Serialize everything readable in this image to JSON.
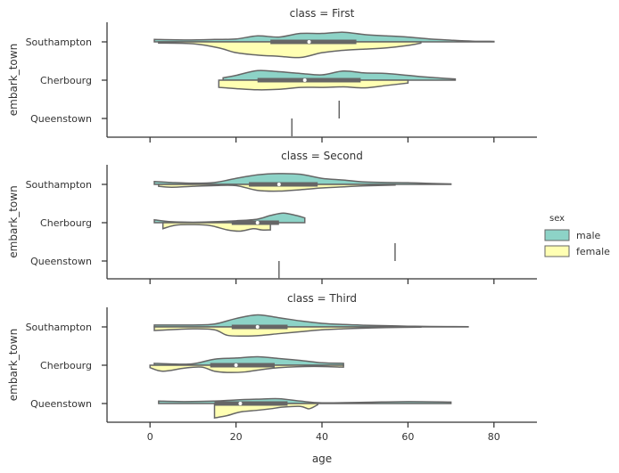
{
  "chart_data": {
    "type": "violin",
    "xlabel": "age",
    "ylabel": "embark_town",
    "xlim": [
      -10,
      90
    ],
    "xticks": [
      "0",
      "20",
      "40",
      "60",
      "80"
    ],
    "xtick_values": [
      0,
      20,
      40,
      60,
      80
    ],
    "categories": [
      "Southampton",
      "Cherbourg",
      "Queenstown"
    ],
    "legend": {
      "title": "sex",
      "entries": [
        {
          "name": "male",
          "color": "#8dd3c7"
        },
        {
          "name": "female",
          "color": "#ffffb3"
        }
      ],
      "placement": "center-right"
    },
    "colors": {
      "male": "#8dd3c7",
      "female": "#ffffb3",
      "outline": "#666666"
    },
    "panels": [
      {
        "title": "class = First",
        "groups": [
          {
            "category": "Southampton",
            "male": {
              "range": [
                1,
                80
              ],
              "profile": [
                [
                  1,
                  0.1
                ],
                [
                  8,
                  0.08
                ],
                [
                  15,
                  0.1
                ],
                [
                  20,
                  0.12
                ],
                [
                  25,
                  0.25
                ],
                [
                  30,
                  0.2
                ],
                [
                  35,
                  0.35
                ],
                [
                  40,
                  0.35
                ],
                [
                  45,
                  0.4
                ],
                [
                  50,
                  0.3
                ],
                [
                  55,
                  0.25
                ],
                [
                  60,
                  0.2
                ],
                [
                  65,
                  0.12
                ],
                [
                  70,
                  0.07
                ],
                [
                  75,
                  0.03
                ],
                [
                  80,
                  0.02
                ]
              ]
            },
            "female": {
              "range": [
                2,
                63
              ],
              "profile": [
                [
                  2,
                  0.05
                ],
                [
                  10,
                  0.08
                ],
                [
                  16,
                  0.25
                ],
                [
                  20,
                  0.45
                ],
                [
                  25,
                  0.55
                ],
                [
                  30,
                  0.6
                ],
                [
                  35,
                  0.65
                ],
                [
                  40,
                  0.45
                ],
                [
                  45,
                  0.35
                ],
                [
                  50,
                  0.3
                ],
                [
                  55,
                  0.25
                ],
                [
                  60,
                  0.15
                ],
                [
                  63,
                  0.05
                ]
              ]
            },
            "q1": 28,
            "median": 37,
            "q3": 48
          },
          {
            "category": "Cherbourg",
            "male": {
              "range": [
                17,
                71
              ],
              "profile": [
                [
                  17,
                  0.1
                ],
                [
                  20,
                  0.2
                ],
                [
                  25,
                  0.4
                ],
                [
                  30,
                  0.35
                ],
                [
                  35,
                  0.28
                ],
                [
                  40,
                  0.22
                ],
                [
                  45,
                  0.38
                ],
                [
                  50,
                  0.3
                ],
                [
                  55,
                  0.28
                ],
                [
                  60,
                  0.2
                ],
                [
                  65,
                  0.12
                ],
                [
                  71,
                  0.05
                ]
              ]
            },
            "female": {
              "range": [
                16,
                60
              ],
              "profile": [
                [
                  16,
                  0.3
                ],
                [
                  20,
                  0.35
                ],
                [
                  25,
                  0.4
                ],
                [
                  30,
                  0.38
                ],
                [
                  35,
                  0.3
                ],
                [
                  40,
                  0.3
                ],
                [
                  45,
                  0.28
                ],
                [
                  50,
                  0.32
                ],
                [
                  55,
                  0.22
                ],
                [
                  60,
                  0.12
                ]
              ]
            },
            "q1": 25,
            "median": 36,
            "q3": 49
          },
          {
            "category": "Queenstown",
            "male": {
              "single": 44
            },
            "female": {
              "single": 33
            }
          }
        ]
      },
      {
        "title": "class = Second",
        "groups": [
          {
            "category": "Southampton",
            "male": {
              "range": [
                1,
                70
              ],
              "profile": [
                [
                  1,
                  0.12
                ],
                [
                  5,
                  0.08
                ],
                [
                  10,
                  0.05
                ],
                [
                  15,
                  0.08
                ],
                [
                  20,
                  0.25
                ],
                [
                  25,
                  0.4
                ],
                [
                  30,
                  0.45
                ],
                [
                  35,
                  0.42
                ],
                [
                  40,
                  0.25
                ],
                [
                  45,
                  0.18
                ],
                [
                  50,
                  0.1
                ],
                [
                  55,
                  0.08
                ],
                [
                  60,
                  0.07
                ],
                [
                  65,
                  0.04
                ],
                [
                  70,
                  0.02
                ]
              ]
            },
            "female": {
              "range": [
                2,
                57
              ],
              "profile": [
                [
                  2,
                  0.08
                ],
                [
                  5,
                  0.12
                ],
                [
                  10,
                  0.08
                ],
                [
                  15,
                  0.05
                ],
                [
                  20,
                  0.05
                ],
                [
                  25,
                  0.25
                ],
                [
                  30,
                  0.28
                ],
                [
                  35,
                  0.22
                ],
                [
                  40,
                  0.15
                ],
                [
                  45,
                  0.1
                ],
                [
                  50,
                  0.06
                ],
                [
                  57,
                  0.03
                ]
              ]
            },
            "q1": 23,
            "median": 30,
            "q3": 39
          },
          {
            "category": "Cherbourg",
            "male": {
              "range": [
                1,
                36
              ],
              "profile": [
                [
                  1,
                  0.12
                ],
                [
                  5,
                  0.04
                ],
                [
                  10,
                  0.02
                ],
                [
                  15,
                  0.04
                ],
                [
                  20,
                  0.08
                ],
                [
                  25,
                  0.15
                ],
                [
                  28,
                  0.3
                ],
                [
                  31,
                  0.4
                ],
                [
                  34,
                  0.3
                ],
                [
                  36,
                  0.2
                ]
              ]
            },
            "female": {
              "range": [
                3,
                28
              ],
              "profile": [
                [
                  3,
                  0.25
                ],
                [
                  6,
                  0.1
                ],
                [
                  10,
                  0.08
                ],
                [
                  14,
                  0.12
                ],
                [
                  18,
                  0.3
                ],
                [
                  21,
                  0.35
                ],
                [
                  24,
                  0.25
                ],
                [
                  26,
                  0.3
                ],
                [
                  28,
                  0.3
                ]
              ]
            },
            "q1": 19,
            "median": 25,
            "q3": 30
          },
          {
            "category": "Queenstown",
            "male": {
              "single": 57
            },
            "female": {
              "single": 30
            }
          }
        ]
      },
      {
        "title": "class = Third",
        "groups": [
          {
            "category": "Southampton",
            "male": {
              "range": [
                1,
                74
              ],
              "profile": [
                [
                  1,
                  0.08
                ],
                [
                  10,
                  0.08
                ],
                [
                  15,
                  0.12
                ],
                [
                  20,
                  0.35
                ],
                [
                  25,
                  0.5
                ],
                [
                  30,
                  0.38
                ],
                [
                  35,
                  0.25
                ],
                [
                  40,
                  0.15
                ],
                [
                  45,
                  0.1
                ],
                [
                  50,
                  0.07
                ],
                [
                  55,
                  0.05
                ],
                [
                  60,
                  0.03
                ],
                [
                  65,
                  0.02
                ],
                [
                  74,
                  0.01
                ]
              ]
            },
            "female": {
              "range": [
                1,
                63
              ],
              "profile": [
                [
                  1,
                  0.15
                ],
                [
                  10,
                  0.08
                ],
                [
                  15,
                  0.12
                ],
                [
                  18,
                  0.35
                ],
                [
                  22,
                  0.38
                ],
                [
                  26,
                  0.35
                ],
                [
                  30,
                  0.28
                ],
                [
                  35,
                  0.2
                ],
                [
                  40,
                  0.12
                ],
                [
                  45,
                  0.08
                ],
                [
                  50,
                  0.05
                ],
                [
                  55,
                  0.03
                ],
                [
                  63,
                  0.01
                ]
              ]
            },
            "q1": 19,
            "median": 25,
            "q3": 32
          },
          {
            "category": "Cherbourg",
            "male": {
              "range": [
                1,
                45
              ],
              "profile": [
                [
                  1,
                  0.08
                ],
                [
                  5,
                  0.05
                ],
                [
                  10,
                  0.06
                ],
                [
                  15,
                  0.25
                ],
                [
                  20,
                  0.3
                ],
                [
                  25,
                  0.35
                ],
                [
                  30,
                  0.28
                ],
                [
                  35,
                  0.2
                ],
                [
                  40,
                  0.1
                ],
                [
                  45,
                  0.08
                ]
              ]
            },
            "female": {
              "range": [
                0,
                45
              ],
              "profile": [
                [
                  0,
                  0.1
                ],
                [
                  3,
                  0.25
                ],
                [
                  8,
                  0.12
                ],
                [
                  12,
                  0.08
                ],
                [
                  15,
                  0.25
                ],
                [
                  18,
                  0.3
                ],
                [
                  22,
                  0.28
                ],
                [
                  26,
                  0.18
                ],
                [
                  30,
                  0.1
                ],
                [
                  38,
                  0.05
                ],
                [
                  45,
                  0.08
                ]
              ]
            },
            "q1": 14,
            "median": 20,
            "q3": 29
          },
          {
            "category": "Queenstown",
            "male": {
              "range": [
                2,
                70
              ],
              "profile": [
                [
                  2,
                  0.1
                ],
                [
                  8,
                  0.08
                ],
                [
                  15,
                  0.1
                ],
                [
                  20,
                  0.15
                ],
                [
                  25,
                  0.18
                ],
                [
                  30,
                  0.2
                ],
                [
                  35,
                  0.1
                ],
                [
                  40,
                  0.03
                ],
                [
                  50,
                  0.05
                ],
                [
                  60,
                  0.08
                ],
                [
                  70,
                  0.06
                ]
              ]
            },
            "female": {
              "range": [
                15,
                39
              ],
              "profile": [
                [
                  15,
                  0.6
                ],
                [
                  18,
                  0.5
                ],
                [
                  21,
                  0.35
                ],
                [
                  25,
                  0.28
                ],
                [
                  28,
                  0.22
                ],
                [
                  31,
                  0.15
                ],
                [
                  35,
                  0.12
                ],
                [
                  37,
                  0.22
                ],
                [
                  39,
                  0.05
                ]
              ]
            },
            "q1": 15,
            "median": 21,
            "q3": 32
          }
        ]
      }
    ]
  }
}
